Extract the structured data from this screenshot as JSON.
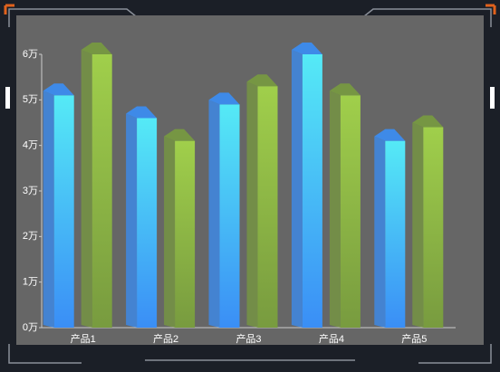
{
  "chart_data": {
    "type": "bar3d",
    "categories": [
      "产品1",
      "产品2",
      "产品3",
      "产品4",
      "产品5"
    ],
    "series": [
      {
        "colors": [
          "#55eaf6",
          "#3a8ef6"
        ],
        "values": [
          51000,
          46000,
          49000,
          60000,
          41000
        ]
      },
      {
        "colors": [
          "#a0cf4b",
          "#789b3f"
        ],
        "values": [
          60000,
          41000,
          53000,
          51000,
          44000
        ]
      }
    ],
    "ylim": [
      0,
      60000
    ],
    "yticks": [
      {
        "value": 0,
        "label": "0万"
      },
      {
        "value": 10000,
        "label": "1万"
      },
      {
        "value": 20000,
        "label": "2万"
      },
      {
        "value": 30000,
        "label": "3万"
      },
      {
        "value": 40000,
        "label": "4万"
      },
      {
        "value": 50000,
        "label": "5万"
      },
      {
        "value": 60000,
        "label": "6万"
      }
    ]
  }
}
